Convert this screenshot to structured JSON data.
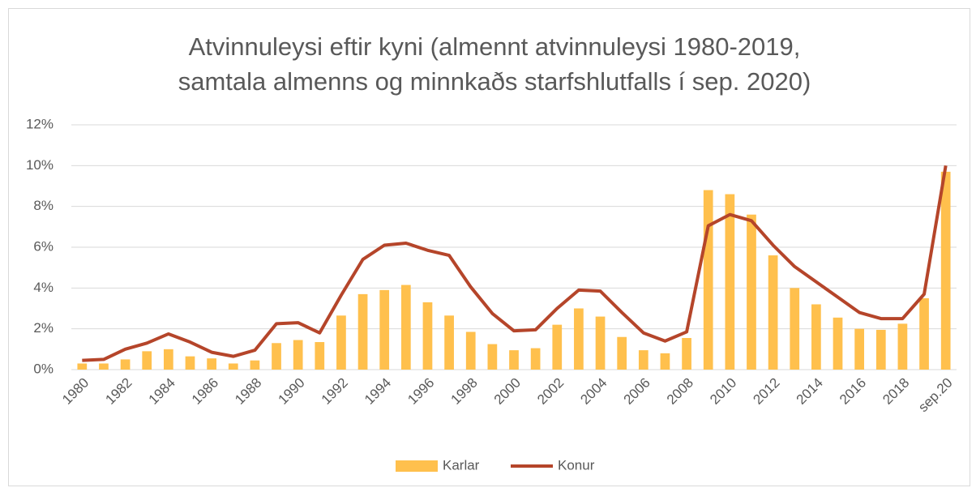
{
  "chart_data": {
    "type": "bar-line",
    "title": [
      "Atvinnuleysi eftir kyni (almennt atvinnuleysi 1980-2019,",
      "samtala almenns og minnkaðs starfshlutfalls í sep. 2020)"
    ],
    "categories": [
      "1980",
      null,
      "1982",
      null,
      "1984",
      null,
      "1986",
      null,
      "1988",
      null,
      "1990",
      null,
      "1992",
      null,
      "1994",
      null,
      "1996",
      null,
      "1998",
      null,
      "2000",
      null,
      "2002",
      null,
      "2004",
      null,
      "2006",
      null,
      "2008",
      null,
      "2010",
      null,
      "2012",
      null,
      "2014",
      null,
      "2016",
      null,
      "2018",
      null,
      "sep.20"
    ],
    "series": [
      {
        "name": "Karlar",
        "type": "bar",
        "color": "#ffc04d",
        "values": [
          0.3,
          0.3,
          0.5,
          0.9,
          1.0,
          0.65,
          0.55,
          0.3,
          0.45,
          1.3,
          1.45,
          1.35,
          2.65,
          3.7,
          3.9,
          4.15,
          3.3,
          2.65,
          1.85,
          1.25,
          0.95,
          1.05,
          2.2,
          3.0,
          2.6,
          1.6,
          0.95,
          0.8,
          1.55,
          8.8,
          8.6,
          7.6,
          5.6,
          4.0,
          3.2,
          2.55,
          2.0,
          1.95,
          2.25,
          3.5,
          9.7
        ]
      },
      {
        "name": "Konur",
        "type": "line",
        "color": "#b5452a",
        "values": [
          0.45,
          0.5,
          1.0,
          1.3,
          1.75,
          1.35,
          0.85,
          0.65,
          0.95,
          2.25,
          2.3,
          1.8,
          3.65,
          5.4,
          6.1,
          6.2,
          5.85,
          5.6,
          4.05,
          2.75,
          1.9,
          1.95,
          3.0,
          3.9,
          3.85,
          2.8,
          1.8,
          1.4,
          1.85,
          7.05,
          7.6,
          7.3,
          6.1,
          5.05,
          4.3,
          3.55,
          2.8,
          2.5,
          2.5,
          3.7,
          10.0
        ]
      }
    ],
    "ylim": [
      0,
      12
    ],
    "yticks": [
      {
        "value": 0,
        "label": "0%"
      },
      {
        "value": 2,
        "label": "2%"
      },
      {
        "value": 4,
        "label": "4%"
      },
      {
        "value": 6,
        "label": "6%"
      },
      {
        "value": 8,
        "label": "8%"
      },
      {
        "value": 10,
        "label": "10%"
      },
      {
        "value": 12,
        "label": "12%"
      }
    ],
    "grid": true,
    "legend": "bottom"
  }
}
